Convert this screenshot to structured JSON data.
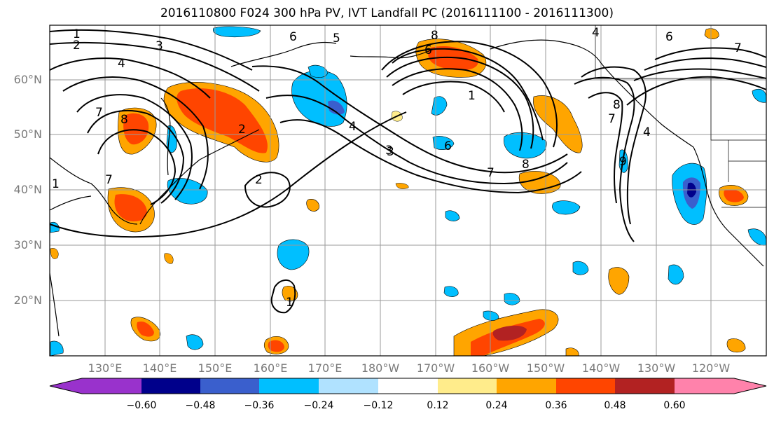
{
  "title": "2016110800 F024 300 hPa PV, IVT Landfall PC (2016111100 - 2016111300)",
  "map": {
    "lat_labels": [
      "60°N",
      "50°N",
      "40°N",
      "30°N",
      "20°N"
    ],
    "lon_labels": [
      "130°E",
      "140°E",
      "150°E",
      "160°E",
      "170°E",
      "180°W",
      "170°W",
      "160°W",
      "150°W",
      "140°W",
      "130°W",
      "120°W"
    ],
    "pv_contour_labels": [
      "1",
      "2",
      "3",
      "4",
      "5",
      "6",
      "7",
      "8",
      "1",
      "2",
      "3",
      "4",
      "7",
      "8",
      "6",
      "4",
      "6",
      "7",
      "8",
      "7",
      "8",
      "1",
      "4",
      "6",
      "7",
      "9",
      "2",
      "3",
      "1"
    ]
  },
  "colorbar": {
    "ticks": [
      "−0.60",
      "−0.48",
      "−0.36",
      "−0.24",
      "−0.12",
      "0.12",
      "0.24",
      "0.36",
      "0.48",
      "0.60"
    ],
    "colors": [
      "#9932cc",
      "#00008b",
      "#3a5fcd",
      "#00bfff",
      "#b0e2ff",
      "#ffffff",
      "#ffec8b",
      "#ffa500",
      "#ff4500",
      "#b22222",
      "#ff82ab"
    ]
  }
}
